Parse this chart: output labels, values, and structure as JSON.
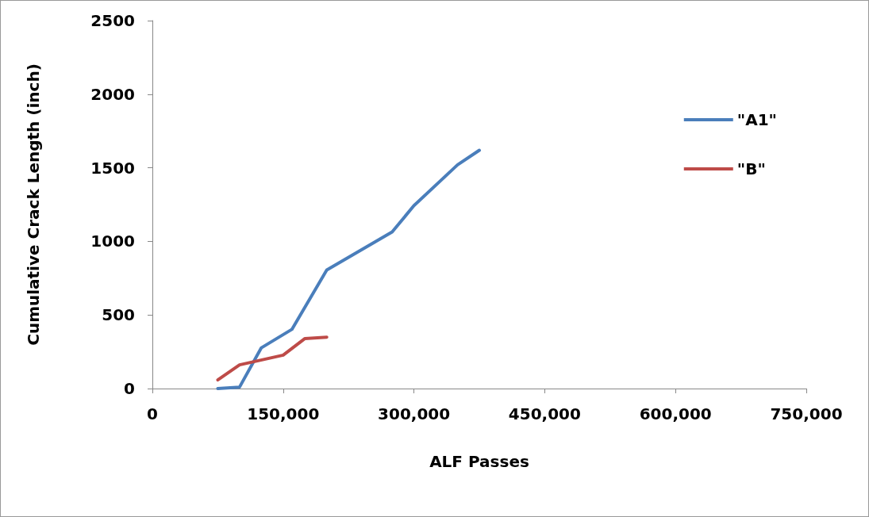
{
  "chart_data": {
    "type": "line",
    "xlabel": "ALF Passes",
    "ylabel": "Cumulative Crack Length (inch)",
    "xlim": [
      0,
      750000
    ],
    "xticks": [
      {
        "value": 0,
        "label": "0"
      },
      {
        "value": 150000,
        "label": "150,000"
      },
      {
        "value": 300000,
        "label": "300,000"
      },
      {
        "value": 450000,
        "label": "450,000"
      },
      {
        "value": 600000,
        "label": "600,000"
      },
      {
        "value": 750000,
        "label": "750,000"
      }
    ],
    "ylim": [
      0,
      2500
    ],
    "yticks": [
      0,
      500,
      1000,
      1500,
      2000,
      2500
    ],
    "grid": false,
    "legend": "right",
    "marker": "none",
    "line_style": "solid",
    "series": [
      {
        "name": "\"A1\"",
        "color": "#4a7ebb",
        "x": [
          75000,
          100000,
          125000,
          160000,
          200000,
          275000,
          300000,
          350000,
          375000
        ],
        "values": [
          0,
          10,
          277,
          402,
          805,
          1064,
          1243,
          1520,
          1619
        ]
      },
      {
        "name": "\"B\"",
        "color": "#be4b48",
        "x": [
          75000,
          100000,
          150000,
          175000,
          200000
        ],
        "values": [
          59,
          161,
          227,
          340,
          349
        ]
      }
    ]
  }
}
